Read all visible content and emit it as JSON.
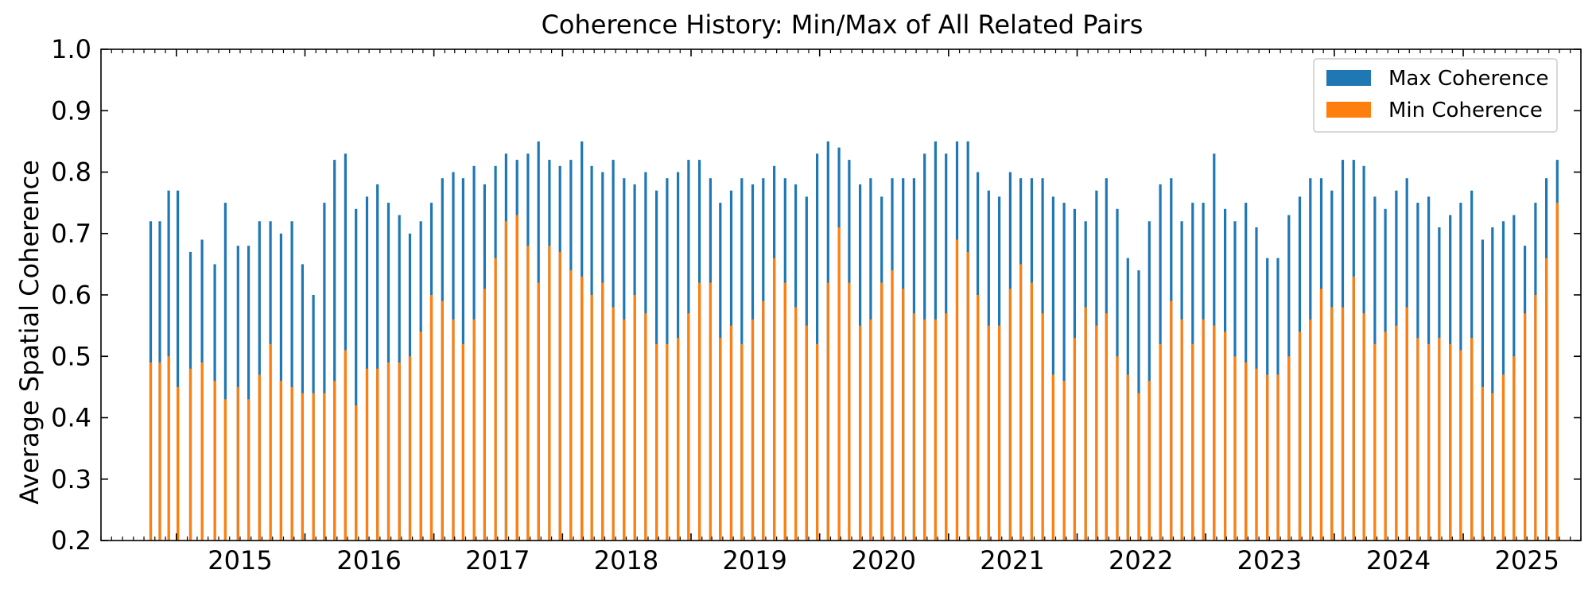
{
  "chart_data": {
    "type": "bar",
    "title": "Coherence History: Min/Max of All Related Pairs",
    "xlabel": "",
    "ylabel": "Average Spatial Coherence",
    "ylim": [
      0.2,
      1.0
    ],
    "xlim": [
      "2014-06-01",
      "2025-12-01"
    ],
    "y_ticks": [
      "0.2",
      "0.3",
      "0.4",
      "0.5",
      "0.6",
      "0.7",
      "0.8",
      "0.9",
      "1.0"
    ],
    "x_ticks": [
      "2015",
      "2016",
      "2017",
      "2018",
      "2019",
      "2020",
      "2021",
      "2022",
      "2023",
      "2024",
      "2025"
    ],
    "legend": {
      "position": "top-right"
    },
    "grid": false,
    "series": [
      {
        "name": "Max Coherence",
        "color": "#1f77b4",
        "points": [
          [
            "2014-10-20",
            0.72
          ],
          [
            "2014-11-15",
            0.72
          ],
          [
            "2014-12-10",
            0.77
          ],
          [
            "2015-01-05",
            0.77
          ],
          [
            "2015-02-10",
            0.67
          ],
          [
            "2015-03-15",
            0.69
          ],
          [
            "2015-04-20",
            0.65
          ],
          [
            "2015-05-20",
            0.75
          ],
          [
            "2015-06-25",
            0.68
          ],
          [
            "2015-07-25",
            0.68
          ],
          [
            "2015-08-25",
            0.72
          ],
          [
            "2015-09-25",
            0.72
          ],
          [
            "2015-10-25",
            0.7
          ],
          [
            "2015-11-25",
            0.72
          ],
          [
            "2015-12-25",
            0.65
          ],
          [
            "2016-01-25",
            0.6
          ],
          [
            "2016-02-25",
            0.75
          ],
          [
            "2016-03-25",
            0.82
          ],
          [
            "2016-04-25",
            0.83
          ],
          [
            "2016-05-25",
            0.74
          ],
          [
            "2016-06-25",
            0.76
          ],
          [
            "2016-07-25",
            0.78
          ],
          [
            "2016-08-25",
            0.75
          ],
          [
            "2016-09-25",
            0.73
          ],
          [
            "2016-10-25",
            0.7
          ],
          [
            "2016-11-25",
            0.72
          ],
          [
            "2016-12-25",
            0.75
          ],
          [
            "2017-01-25",
            0.79
          ],
          [
            "2017-02-25",
            0.8
          ],
          [
            "2017-03-25",
            0.79
          ],
          [
            "2017-04-25",
            0.81
          ],
          [
            "2017-05-25",
            0.78
          ],
          [
            "2017-06-25",
            0.81
          ],
          [
            "2017-07-25",
            0.83
          ],
          [
            "2017-08-25",
            0.82
          ],
          [
            "2017-09-25",
            0.83
          ],
          [
            "2017-10-25",
            0.85
          ],
          [
            "2017-11-25",
            0.82
          ],
          [
            "2017-12-25",
            0.81
          ],
          [
            "2018-01-25",
            0.82
          ],
          [
            "2018-02-25",
            0.85
          ],
          [
            "2018-03-25",
            0.81
          ],
          [
            "2018-04-25",
            0.8
          ],
          [
            "2018-05-25",
            0.82
          ],
          [
            "2018-06-25",
            0.79
          ],
          [
            "2018-07-25",
            0.78
          ],
          [
            "2018-08-25",
            0.8
          ],
          [
            "2018-09-25",
            0.77
          ],
          [
            "2018-10-25",
            0.79
          ],
          [
            "2018-11-25",
            0.8
          ],
          [
            "2018-12-25",
            0.82
          ],
          [
            "2019-01-25",
            0.82
          ],
          [
            "2019-02-25",
            0.79
          ],
          [
            "2019-03-25",
            0.75
          ],
          [
            "2019-04-25",
            0.77
          ],
          [
            "2019-05-25",
            0.79
          ],
          [
            "2019-06-25",
            0.78
          ],
          [
            "2019-07-25",
            0.79
          ],
          [
            "2019-08-25",
            0.81
          ],
          [
            "2019-09-25",
            0.79
          ],
          [
            "2019-10-25",
            0.78
          ],
          [
            "2019-11-25",
            0.76
          ],
          [
            "2019-12-25",
            0.83
          ],
          [
            "2020-01-25",
            0.85
          ],
          [
            "2020-02-25",
            0.84
          ],
          [
            "2020-03-25",
            0.82
          ],
          [
            "2020-04-25",
            0.78
          ],
          [
            "2020-05-25",
            0.79
          ],
          [
            "2020-06-25",
            0.76
          ],
          [
            "2020-07-25",
            0.79
          ],
          [
            "2020-08-25",
            0.79
          ],
          [
            "2020-09-25",
            0.79
          ],
          [
            "2020-10-25",
            0.83
          ],
          [
            "2020-11-25",
            0.85
          ],
          [
            "2020-12-25",
            0.83
          ],
          [
            "2021-01-25",
            0.85
          ],
          [
            "2021-02-25",
            0.85
          ],
          [
            "2021-03-25",
            0.8
          ],
          [
            "2021-04-25",
            0.77
          ],
          [
            "2021-05-25",
            0.76
          ],
          [
            "2021-06-25",
            0.8
          ],
          [
            "2021-07-25",
            0.79
          ],
          [
            "2021-08-25",
            0.79
          ],
          [
            "2021-09-25",
            0.79
          ],
          [
            "2021-10-25",
            0.76
          ],
          [
            "2021-11-25",
            0.75
          ],
          [
            "2021-12-25",
            0.74
          ],
          [
            "2022-01-25",
            0.72
          ],
          [
            "2022-02-25",
            0.77
          ],
          [
            "2022-03-25",
            0.79
          ],
          [
            "2022-04-25",
            0.74
          ],
          [
            "2022-05-25",
            0.66
          ],
          [
            "2022-06-25",
            0.64
          ],
          [
            "2022-07-25",
            0.72
          ],
          [
            "2022-08-25",
            0.78
          ],
          [
            "2022-09-25",
            0.79
          ],
          [
            "2022-10-25",
            0.72
          ],
          [
            "2022-11-25",
            0.75
          ],
          [
            "2022-12-25",
            0.75
          ],
          [
            "2023-01-25",
            0.83
          ],
          [
            "2023-02-25",
            0.74
          ],
          [
            "2023-03-25",
            0.72
          ],
          [
            "2023-04-25",
            0.75
          ],
          [
            "2023-05-25",
            0.71
          ],
          [
            "2023-06-25",
            0.66
          ],
          [
            "2023-07-25",
            0.66
          ],
          [
            "2023-08-25",
            0.73
          ],
          [
            "2023-09-25",
            0.76
          ],
          [
            "2023-10-25",
            0.79
          ],
          [
            "2023-11-25",
            0.79
          ],
          [
            "2023-12-25",
            0.77
          ],
          [
            "2024-01-25",
            0.82
          ],
          [
            "2024-02-25",
            0.82
          ],
          [
            "2024-03-25",
            0.81
          ],
          [
            "2024-04-25",
            0.76
          ],
          [
            "2024-05-25",
            0.74
          ],
          [
            "2024-06-25",
            0.77
          ],
          [
            "2024-07-25",
            0.79
          ],
          [
            "2024-08-25",
            0.75
          ],
          [
            "2024-09-25",
            0.76
          ],
          [
            "2024-10-25",
            0.71
          ],
          [
            "2024-11-25",
            0.73
          ],
          [
            "2024-12-25",
            0.75
          ],
          [
            "2025-01-25",
            0.77
          ],
          [
            "2025-02-25",
            0.69
          ],
          [
            "2025-03-25",
            0.71
          ],
          [
            "2025-04-25",
            0.72
          ],
          [
            "2025-05-25",
            0.73
          ],
          [
            "2025-06-25",
            0.68
          ],
          [
            "2025-07-25",
            0.75
          ],
          [
            "2025-08-25",
            0.79
          ],
          [
            "2025-09-25",
            0.82
          ]
        ]
      },
      {
        "name": "Min Coherence",
        "color": "#ff7f0e",
        "points": [
          [
            "2014-10-20",
            0.49
          ],
          [
            "2014-11-15",
            0.49
          ],
          [
            "2014-12-10",
            0.5
          ],
          [
            "2015-01-05",
            0.45
          ],
          [
            "2015-02-10",
            0.48
          ],
          [
            "2015-03-15",
            0.49
          ],
          [
            "2015-04-20",
            0.46
          ],
          [
            "2015-05-20",
            0.43
          ],
          [
            "2015-06-25",
            0.45
          ],
          [
            "2015-07-25",
            0.43
          ],
          [
            "2015-08-25",
            0.47
          ],
          [
            "2015-09-25",
            0.52
          ],
          [
            "2015-10-25",
            0.46
          ],
          [
            "2015-11-25",
            0.45
          ],
          [
            "2015-12-25",
            0.44
          ],
          [
            "2016-01-25",
            0.44
          ],
          [
            "2016-02-25",
            0.44
          ],
          [
            "2016-03-25",
            0.46
          ],
          [
            "2016-04-25",
            0.51
          ],
          [
            "2016-05-25",
            0.42
          ],
          [
            "2016-06-25",
            0.48
          ],
          [
            "2016-07-25",
            0.48
          ],
          [
            "2016-08-25",
            0.49
          ],
          [
            "2016-09-25",
            0.49
          ],
          [
            "2016-10-25",
            0.5
          ],
          [
            "2016-11-25",
            0.54
          ],
          [
            "2016-12-25",
            0.6
          ],
          [
            "2017-01-25",
            0.59
          ],
          [
            "2017-02-25",
            0.56
          ],
          [
            "2017-03-25",
            0.52
          ],
          [
            "2017-04-25",
            0.56
          ],
          [
            "2017-05-25",
            0.61
          ],
          [
            "2017-06-25",
            0.66
          ],
          [
            "2017-07-25",
            0.72
          ],
          [
            "2017-08-25",
            0.73
          ],
          [
            "2017-09-25",
            0.68
          ],
          [
            "2017-10-25",
            0.62
          ],
          [
            "2017-11-25",
            0.68
          ],
          [
            "2017-12-25",
            0.67
          ],
          [
            "2018-01-25",
            0.64
          ],
          [
            "2018-02-25",
            0.63
          ],
          [
            "2018-03-25",
            0.6
          ],
          [
            "2018-04-25",
            0.62
          ],
          [
            "2018-05-25",
            0.58
          ],
          [
            "2018-06-25",
            0.56
          ],
          [
            "2018-07-25",
            0.6
          ],
          [
            "2018-08-25",
            0.57
          ],
          [
            "2018-09-25",
            0.52
          ],
          [
            "2018-10-25",
            0.52
          ],
          [
            "2018-11-25",
            0.53
          ],
          [
            "2018-12-25",
            0.57
          ],
          [
            "2019-01-25",
            0.62
          ],
          [
            "2019-02-25",
            0.62
          ],
          [
            "2019-03-25",
            0.53
          ],
          [
            "2019-04-25",
            0.55
          ],
          [
            "2019-05-25",
            0.52
          ],
          [
            "2019-06-25",
            0.56
          ],
          [
            "2019-07-25",
            0.59
          ],
          [
            "2019-08-25",
            0.66
          ],
          [
            "2019-09-25",
            0.62
          ],
          [
            "2019-10-25",
            0.58
          ],
          [
            "2019-11-25",
            0.55
          ],
          [
            "2019-12-25",
            0.52
          ],
          [
            "2020-01-25",
            0.62
          ],
          [
            "2020-02-25",
            0.71
          ],
          [
            "2020-03-25",
            0.62
          ],
          [
            "2020-04-25",
            0.55
          ],
          [
            "2020-05-25",
            0.56
          ],
          [
            "2020-06-25",
            0.62
          ],
          [
            "2020-07-25",
            0.64
          ],
          [
            "2020-08-25",
            0.61
          ],
          [
            "2020-09-25",
            0.57
          ],
          [
            "2020-10-25",
            0.56
          ],
          [
            "2020-11-25",
            0.56
          ],
          [
            "2020-12-25",
            0.57
          ],
          [
            "2021-01-25",
            0.69
          ],
          [
            "2021-02-25",
            0.67
          ],
          [
            "2021-03-25",
            0.6
          ],
          [
            "2021-04-25",
            0.55
          ],
          [
            "2021-05-25",
            0.55
          ],
          [
            "2021-06-25",
            0.61
          ],
          [
            "2021-07-25",
            0.65
          ],
          [
            "2021-08-25",
            0.62
          ],
          [
            "2021-09-25",
            0.57
          ],
          [
            "2021-10-25",
            0.47
          ],
          [
            "2021-11-25",
            0.46
          ],
          [
            "2021-12-25",
            0.53
          ],
          [
            "2022-01-25",
            0.58
          ],
          [
            "2022-02-25",
            0.55
          ],
          [
            "2022-03-25",
            0.57
          ],
          [
            "2022-04-25",
            0.5
          ],
          [
            "2022-05-25",
            0.47
          ],
          [
            "2022-06-25",
            0.44
          ],
          [
            "2022-07-25",
            0.46
          ],
          [
            "2022-08-25",
            0.52
          ],
          [
            "2022-09-25",
            0.59
          ],
          [
            "2022-10-25",
            0.56
          ],
          [
            "2022-11-25",
            0.52
          ],
          [
            "2022-12-25",
            0.56
          ],
          [
            "2023-01-25",
            0.55
          ],
          [
            "2023-02-25",
            0.54
          ],
          [
            "2023-03-25",
            0.5
          ],
          [
            "2023-04-25",
            0.49
          ],
          [
            "2023-05-25",
            0.48
          ],
          [
            "2023-06-25",
            0.47
          ],
          [
            "2023-07-25",
            0.47
          ],
          [
            "2023-08-25",
            0.5
          ],
          [
            "2023-09-25",
            0.54
          ],
          [
            "2023-10-25",
            0.56
          ],
          [
            "2023-11-25",
            0.61
          ],
          [
            "2023-12-25",
            0.58
          ],
          [
            "2024-01-25",
            0.58
          ],
          [
            "2024-02-25",
            0.63
          ],
          [
            "2024-03-25",
            0.57
          ],
          [
            "2024-04-25",
            0.52
          ],
          [
            "2024-05-25",
            0.54
          ],
          [
            "2024-06-25",
            0.55
          ],
          [
            "2024-07-25",
            0.58
          ],
          [
            "2024-08-25",
            0.53
          ],
          [
            "2024-09-25",
            0.52
          ],
          [
            "2024-10-25",
            0.53
          ],
          [
            "2024-11-25",
            0.52
          ],
          [
            "2024-12-25",
            0.51
          ],
          [
            "2025-01-25",
            0.53
          ],
          [
            "2025-02-25",
            0.45
          ],
          [
            "2025-03-25",
            0.44
          ],
          [
            "2025-04-25",
            0.47
          ],
          [
            "2025-05-25",
            0.5
          ],
          [
            "2025-06-25",
            0.57
          ],
          [
            "2025-07-25",
            0.6
          ],
          [
            "2025-08-25",
            0.66
          ],
          [
            "2025-09-25",
            0.75
          ]
        ]
      }
    ]
  }
}
